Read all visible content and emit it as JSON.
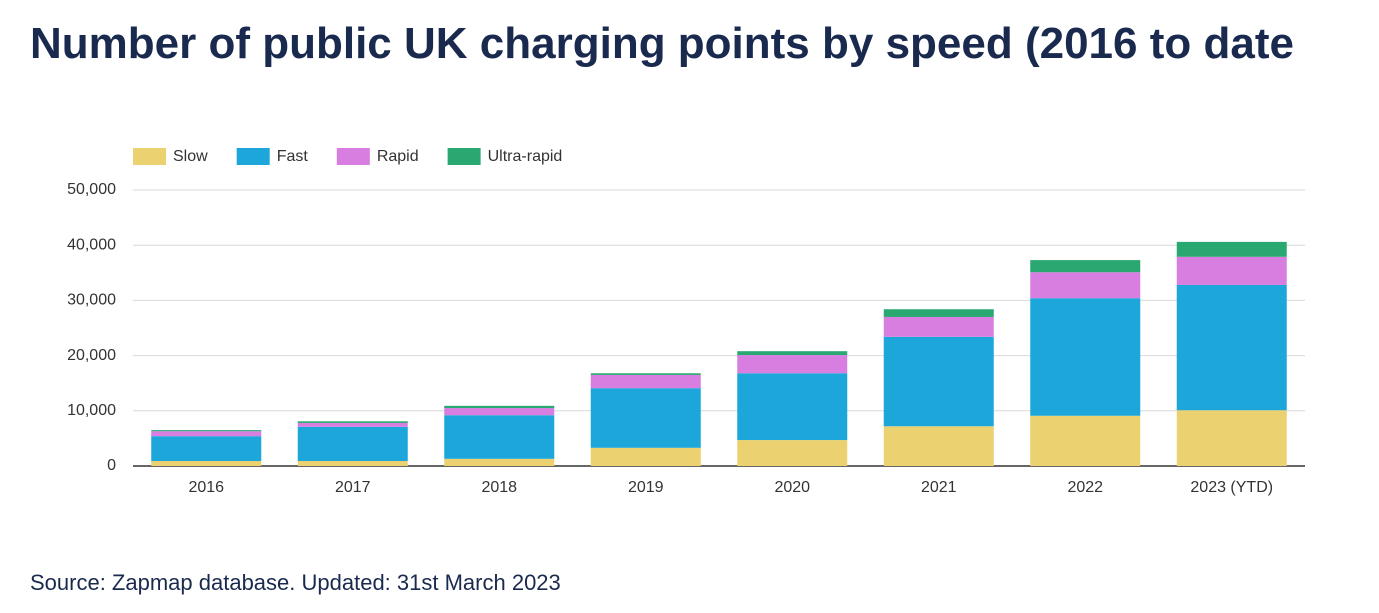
{
  "chart_data": {
    "type": "stacked_bar",
    "title": "Number of public UK charging points by speed (2016 to date",
    "source": "Source: Zapmap database. Updated: 31st March 2023",
    "categories": [
      "2016",
      "2017",
      "2018",
      "2019",
      "2020",
      "2021",
      "2022",
      "2023 (YTD)"
    ],
    "series": [
      {
        "name": "Slow",
        "color": "#ecd170",
        "values": [
          900,
          900,
          1300,
          3300,
          4700,
          7200,
          9100,
          10100
        ]
      },
      {
        "name": "Fast",
        "color": "#1da6da",
        "values": [
          4500,
          6200,
          7900,
          10800,
          12100,
          16200,
          21300,
          22700
        ]
      },
      {
        "name": "Rapid",
        "color": "#d87ee0",
        "values": [
          900,
          700,
          1300,
          2400,
          3300,
          3600,
          4700,
          5100
        ]
      },
      {
        "name": "Ultra-rapid",
        "color": "#2aa872",
        "values": [
          200,
          300,
          400,
          300,
          700,
          1400,
          2200,
          2700
        ]
      }
    ],
    "ylim": [
      0,
      50000
    ],
    "yticks": [
      0,
      {
        "value": 10000,
        "label": "10,000"
      },
      {
        "value": 20000,
        "label": "20,000"
      },
      {
        "value": 30000,
        "label": "30,000"
      },
      {
        "value": 40000,
        "label": "40,000"
      },
      {
        "value": 50000,
        "label": "50,000"
      }
    ],
    "grid": true,
    "legend": "top-left"
  }
}
